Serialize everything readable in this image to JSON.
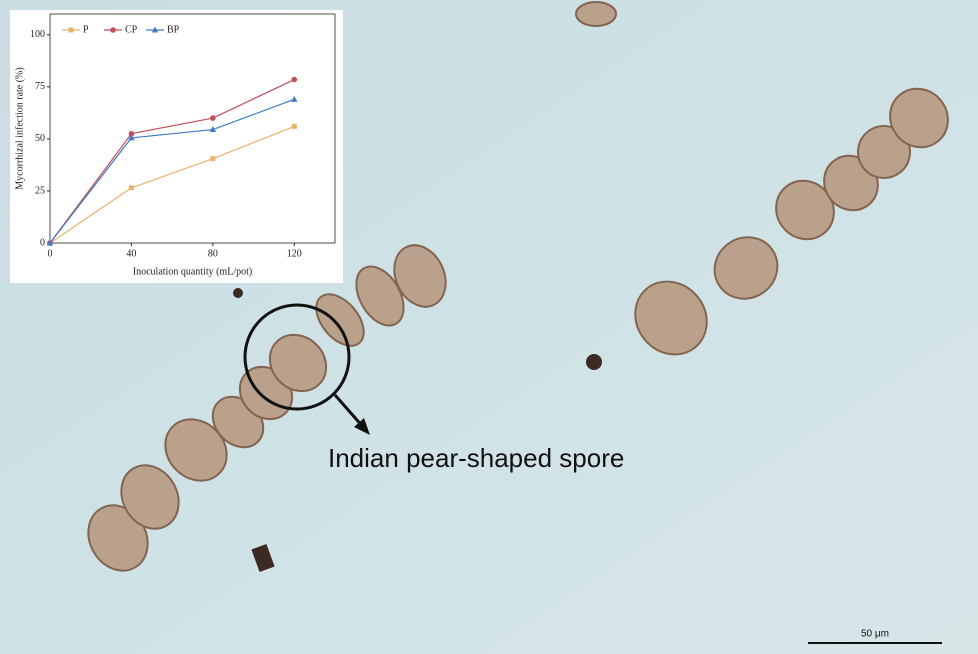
{
  "chart_data": {
    "type": "line",
    "x_label": "Inoculation quantity (mL/pot)",
    "y_label": "Mycorrhizal infection rate (%)",
    "x": [
      0,
      40,
      80,
      120
    ],
    "series": [
      {
        "name": "P",
        "color": "#eab36b",
        "marker": "square",
        "values": [
          0,
          26.5,
          40.5,
          56
        ]
      },
      {
        "name": "CP",
        "color": "#c24f5c",
        "marker": "circle",
        "values": [
          0,
          52.5,
          60,
          78.5
        ]
      },
      {
        "name": "BP",
        "color": "#3f7cc2",
        "marker": "triangle",
        "values": [
          0,
          50.5,
          54.5,
          69
        ]
      }
    ],
    "xlim": [
      0,
      140
    ],
    "ylim": [
      0,
      110
    ],
    "xticks": [
      0,
      40,
      80,
      120
    ],
    "yticks": [
      0,
      25,
      50,
      75,
      100
    ],
    "grid": false,
    "legend": "top-left"
  },
  "image": {
    "annotation": "Indian pear-shaped spore",
    "scale_bar": "50 μm"
  }
}
